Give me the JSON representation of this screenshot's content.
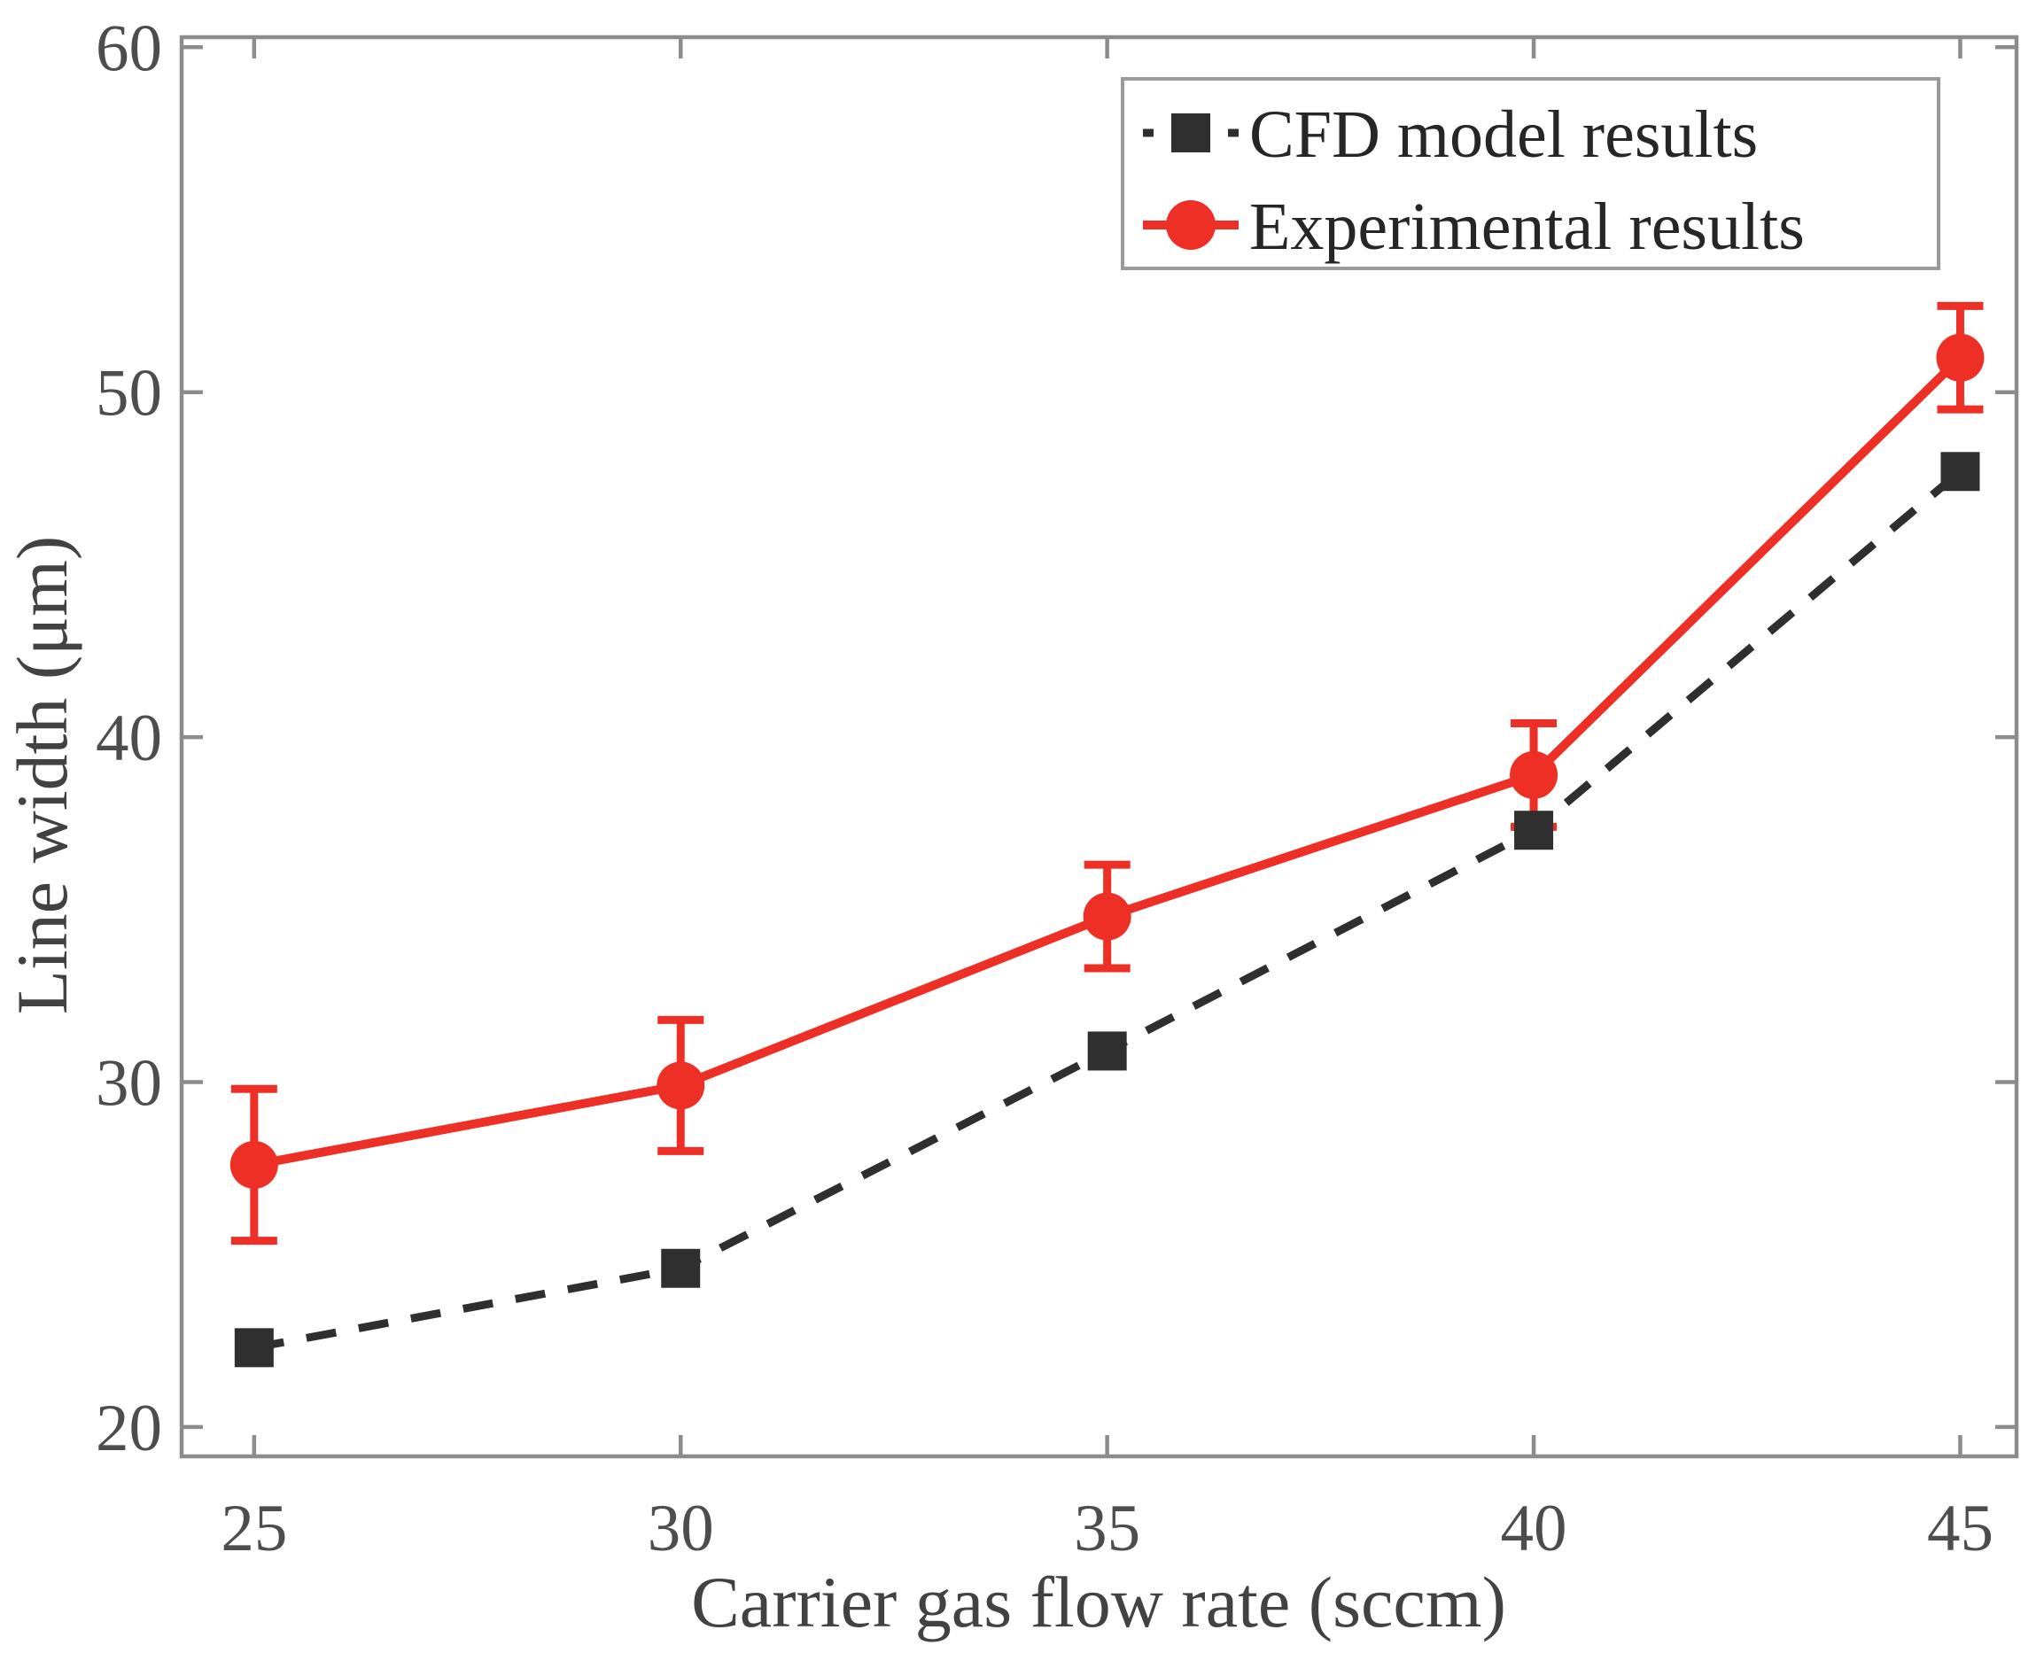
{
  "figure": {
    "background": "#ffffff",
    "frame_color": "#8c8c8c"
  },
  "chart_data": {
    "type": "line",
    "title": "",
    "xlabel": "Carrier gas flow rate (sccm)",
    "ylabel": "Line width (μm)",
    "x": [
      25,
      30,
      35,
      40,
      45
    ],
    "x_ticks": [
      "25",
      "30",
      "35",
      "40",
      "45"
    ],
    "y_ticks": [
      "20",
      "30",
      "40",
      "50",
      "60"
    ],
    "xlim": [
      24.15,
      45.66
    ],
    "ylim": [
      19.15,
      60.29
    ],
    "grid": false,
    "legend_position": "top-right",
    "series": [
      {
        "name": "CFD model results",
        "values": [
          22.3,
          24.6,
          30.9,
          37.3,
          47.7
        ],
        "color": "#2f2f2f",
        "line_style": "dashed",
        "marker": "square"
      },
      {
        "name": "Experimental results",
        "values": [
          27.6,
          29.9,
          34.8,
          38.9,
          51.0
        ],
        "error_bars": [
          2.2,
          1.9,
          1.5,
          1.5,
          1.5
        ],
        "color": "#ed2f26",
        "line_style": "solid",
        "marker": "circle"
      }
    ]
  },
  "style": {
    "tick_label_color": "#4d4d4d",
    "axis_title_color": "#424242",
    "legend_text_color": "#262626",
    "legend_border_color": "#9a9a9a"
  }
}
